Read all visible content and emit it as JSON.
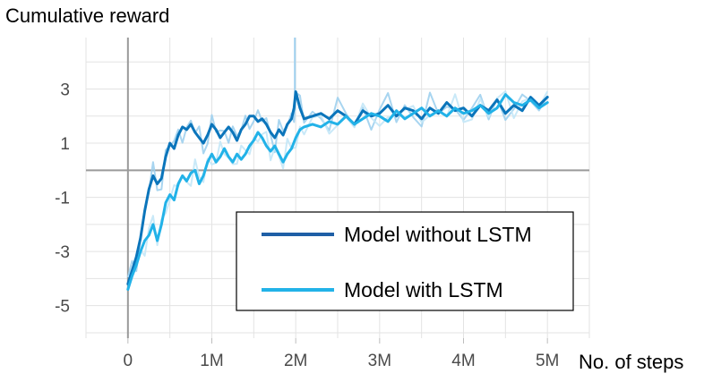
{
  "chart_data": {
    "type": "line",
    "ylabel": "Cumulative reward",
    "xlabel": "No. of steps",
    "xlim": [
      -0.5,
      5.5
    ],
    "ylim": [
      -6.2,
      4.9
    ],
    "x_ticks": [
      0,
      1,
      2,
      3,
      4,
      5
    ],
    "x_tick_labels": [
      "0",
      "1M",
      "2M",
      "3M",
      "4M",
      "5M"
    ],
    "y_ticks": [
      3,
      1,
      -1,
      -3,
      -5
    ],
    "y_tick_labels": [
      "3",
      "1",
      "-1",
      "-3",
      "-5"
    ],
    "grid": true,
    "legend_position": "center-right",
    "series": [
      {
        "name": "Model without LSTM",
        "color": "#0b75bb",
        "legend_color": "#1f5fa6",
        "raw_color": "#9fd0ee",
        "x": [
          0.0,
          0.05,
          0.1,
          0.15,
          0.2,
          0.25,
          0.3,
          0.35,
          0.4,
          0.45,
          0.5,
          0.55,
          0.6,
          0.65,
          0.7,
          0.75,
          0.8,
          0.85,
          0.9,
          0.95,
          1.0,
          1.05,
          1.1,
          1.15,
          1.2,
          1.25,
          1.3,
          1.35,
          1.4,
          1.45,
          1.5,
          1.55,
          1.6,
          1.65,
          1.7,
          1.75,
          1.8,
          1.85,
          1.9,
          1.95,
          1.98,
          2.0,
          2.05,
          2.1,
          2.2,
          2.3,
          2.4,
          2.5,
          2.6,
          2.7,
          2.8,
          2.9,
          3.0,
          3.1,
          3.2,
          3.3,
          3.4,
          3.5,
          3.6,
          3.7,
          3.8,
          3.9,
          4.0,
          4.1,
          4.2,
          4.3,
          4.4,
          4.5,
          4.6,
          4.7,
          4.8,
          4.9,
          5.0
        ],
        "values": [
          -4.2,
          -3.7,
          -3.2,
          -2.5,
          -1.5,
          -0.7,
          -0.2,
          -0.5,
          -0.3,
          0.5,
          1.0,
          0.8,
          1.3,
          1.6,
          1.5,
          1.7,
          1.4,
          1.2,
          1.0,
          1.3,
          1.7,
          1.5,
          1.2,
          1.4,
          1.6,
          1.4,
          1.1,
          1.5,
          1.7,
          2.0,
          2.0,
          1.8,
          1.9,
          1.7,
          1.4,
          1.2,
          1.5,
          1.3,
          1.7,
          1.9,
          2.3,
          2.9,
          2.3,
          1.9,
          2.0,
          2.1,
          1.9,
          2.2,
          2.0,
          1.7,
          2.2,
          2.0,
          2.1,
          2.4,
          2.0,
          2.3,
          2.2,
          1.9,
          2.3,
          2.1,
          2.5,
          2.2,
          2.3,
          2.0,
          2.4,
          2.2,
          2.6,
          2.1,
          2.4,
          2.2,
          2.7,
          2.4,
          2.7
        ]
      },
      {
        "name": "Model with LSTM",
        "color": "#22b2e8",
        "legend_color": "#22b2e8",
        "raw_color": "#c3e7f7",
        "x": [
          0.0,
          0.05,
          0.1,
          0.15,
          0.2,
          0.25,
          0.3,
          0.35,
          0.4,
          0.45,
          0.5,
          0.55,
          0.6,
          0.65,
          0.7,
          0.75,
          0.8,
          0.85,
          0.9,
          0.95,
          1.0,
          1.05,
          1.1,
          1.15,
          1.2,
          1.25,
          1.3,
          1.35,
          1.4,
          1.45,
          1.5,
          1.55,
          1.6,
          1.65,
          1.7,
          1.75,
          1.8,
          1.85,
          1.9,
          1.95,
          2.0,
          2.05,
          2.1,
          2.2,
          2.3,
          2.4,
          2.5,
          2.6,
          2.7,
          2.8,
          2.9,
          3.0,
          3.1,
          3.2,
          3.3,
          3.4,
          3.5,
          3.6,
          3.7,
          3.8,
          3.9,
          4.0,
          4.1,
          4.2,
          4.3,
          4.4,
          4.5,
          4.6,
          4.7,
          4.8,
          4.9,
          5.0
        ],
        "values": [
          -4.4,
          -3.9,
          -3.5,
          -3.0,
          -2.6,
          -2.4,
          -2.0,
          -2.6,
          -2.0,
          -1.2,
          -0.9,
          -1.1,
          -0.5,
          -0.2,
          -0.4,
          -0.1,
          0.0,
          -0.5,
          -0.2,
          0.3,
          0.6,
          0.3,
          0.5,
          0.8,
          0.5,
          0.3,
          0.6,
          0.4,
          0.6,
          0.9,
          1.1,
          1.4,
          1.2,
          0.9,
          0.7,
          0.9,
          0.6,
          0.3,
          0.6,
          0.8,
          1.2,
          1.5,
          1.6,
          1.7,
          1.6,
          1.8,
          1.7,
          2.0,
          1.7,
          1.9,
          2.1,
          2.0,
          1.8,
          2.2,
          1.9,
          2.1,
          2.3,
          2.0,
          2.2,
          2.0,
          2.3,
          2.1,
          2.2,
          2.4,
          2.1,
          2.3,
          2.8,
          2.5,
          2.4,
          2.6,
          2.3,
          2.5
        ]
      }
    ]
  }
}
